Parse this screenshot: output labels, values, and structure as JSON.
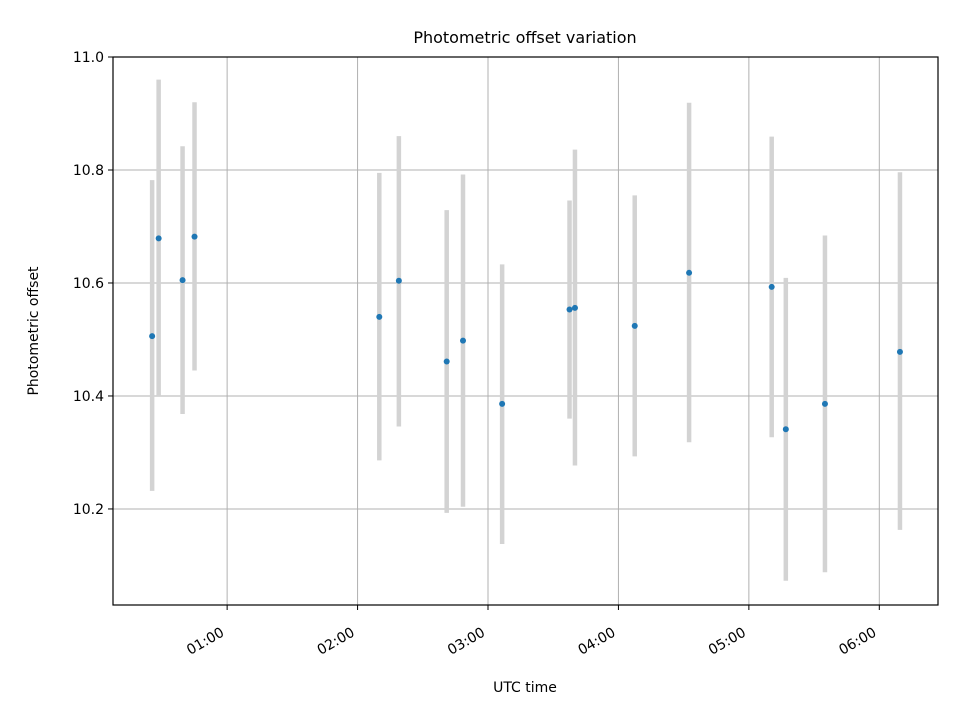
{
  "colors": {
    "point": "#1f77b4",
    "errorbar": "#d3d3d3",
    "grid": "#b0b0b0",
    "axes": "#000000"
  },
  "chart_data": {
    "type": "scatter",
    "title": "Photometric offset variation",
    "xlabel": "UTC time",
    "ylabel": "Photometric offset",
    "x_unit": "time of day (HH:MM:SS)",
    "xlim": [
      "00:07:30",
      "06:27:00"
    ],
    "ylim": [
      10.03,
      11.0
    ],
    "x_ticks": [
      "01:00",
      "02:00",
      "03:00",
      "04:00",
      "05:00",
      "06:00"
    ],
    "y_ticks": [
      "10.2",
      "10.4",
      "10.6",
      "10.8",
      "11.0"
    ],
    "grid": true,
    "legend": "none",
    "series": [
      {
        "marker": "point with vertical error bar",
        "points": [
          {
            "x": "00:25:30",
            "y": 10.506,
            "low": 10.232,
            "high": 10.782
          },
          {
            "x": "00:28:30",
            "y": 10.679,
            "low": 10.4,
            "high": 10.96
          },
          {
            "x": "00:39:30",
            "y": 10.605,
            "low": 10.368,
            "high": 10.842
          },
          {
            "x": "00:45:00",
            "y": 10.682,
            "low": 10.445,
            "high": 10.92
          },
          {
            "x": "02:10:00",
            "y": 10.54,
            "low": 10.286,
            "high": 10.795
          },
          {
            "x": "02:19:00",
            "y": 10.604,
            "low": 10.346,
            "high": 10.86
          },
          {
            "x": "02:41:00",
            "y": 10.461,
            "low": 10.193,
            "high": 10.729
          },
          {
            "x": "02:48:30",
            "y": 10.498,
            "low": 10.204,
            "high": 10.792
          },
          {
            "x": "03:06:30",
            "y": 10.386,
            "low": 10.138,
            "high": 10.633
          },
          {
            "x": "03:37:30",
            "y": 10.553,
            "low": 10.36,
            "high": 10.746
          },
          {
            "x": "03:40:00",
            "y": 10.556,
            "low": 10.277,
            "high": 10.836
          },
          {
            "x": "04:07:30",
            "y": 10.524,
            "low": 10.293,
            "high": 10.755
          },
          {
            "x": "04:32:30",
            "y": 10.618,
            "low": 10.318,
            "high": 10.919
          },
          {
            "x": "05:10:30",
            "y": 10.593,
            "low": 10.327,
            "high": 10.859
          },
          {
            "x": "05:17:00",
            "y": 10.341,
            "low": 10.073,
            "high": 10.609
          },
          {
            "x": "05:35:00",
            "y": 10.386,
            "low": 10.088,
            "high": 10.684
          },
          {
            "x": "06:09:30",
            "y": 10.478,
            "low": 10.163,
            "high": 10.796
          }
        ]
      }
    ]
  }
}
